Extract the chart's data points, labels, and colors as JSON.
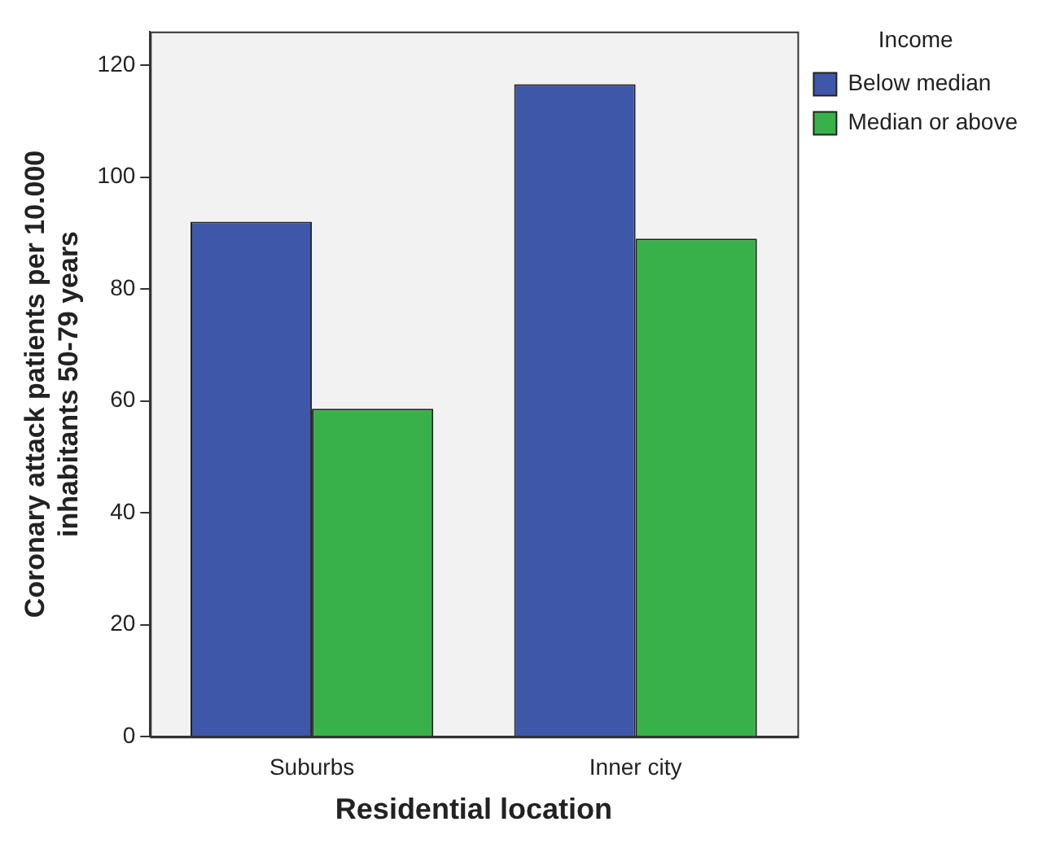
{
  "chart_data": {
    "type": "bar",
    "xlabel": "Residential location",
    "ylabel": "Coronary attack patients per 10.000 inhabitants 50-79 years",
    "legend_title": "Income",
    "categories": [
      "Suburbs",
      "Inner city"
    ],
    "series": [
      {
        "name": "Below median",
        "color": "#3f57a8",
        "values": [
          92,
          116.6
        ]
      },
      {
        "name": "Median or above",
        "color": "#39b14a",
        "values": [
          58.6,
          89
        ]
      }
    ],
    "ylim": [
      0,
      126
    ],
    "yticks": [
      0,
      20,
      40,
      60,
      80,
      100,
      120
    ],
    "grid": false,
    "legend": "right"
  }
}
